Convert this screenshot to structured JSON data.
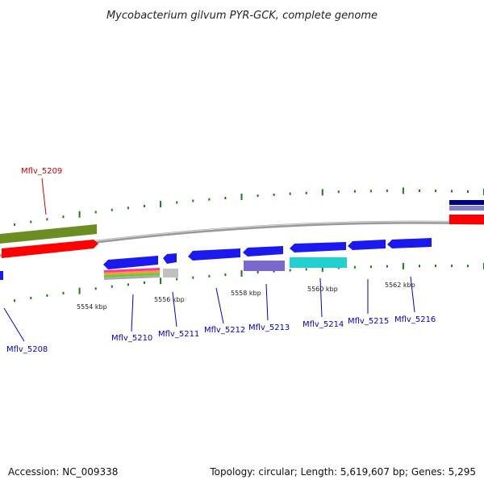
{
  "title": "Mycobacterium gilvum PYR-GCK, complete genome",
  "footer": {
    "accession": "Accession: NC_009338",
    "topology": "Topology: circular; Length: 5,619,607 bp; Genes: 5,295"
  },
  "colors": {
    "backbone": "#888888",
    "tick": "#1a7a1a",
    "gene_label": "#0000cc",
    "highlight_label": "#cc0000",
    "cds_forward": "#ff0000",
    "cds_reverse": "#1a1aee",
    "olive": "#6b8e23",
    "lavender": "#7b68cc",
    "cyan": "#20d0d0",
    "grey": "#c0c0c0"
  },
  "scale_labels": [
    "5554 kbp",
    "5556 kbp",
    "5558 kbp",
    "5560 kbp",
    "5562 kbp"
  ],
  "genes": [
    {
      "label": "Mflv_5208",
      "highlight": false
    },
    {
      "label": "Mflv_5209",
      "highlight": true
    },
    {
      "label": "Mflv_5210",
      "highlight": false
    },
    {
      "label": "Mflv_5211",
      "highlight": false
    },
    {
      "label": "Mflv_5212",
      "highlight": false
    },
    {
      "label": "Mflv_5213",
      "highlight": false
    },
    {
      "label": "Mflv_5214",
      "highlight": false
    },
    {
      "label": "Mflv_5215",
      "highlight": false
    },
    {
      "label": "Mflv_5216",
      "highlight": false
    }
  ]
}
